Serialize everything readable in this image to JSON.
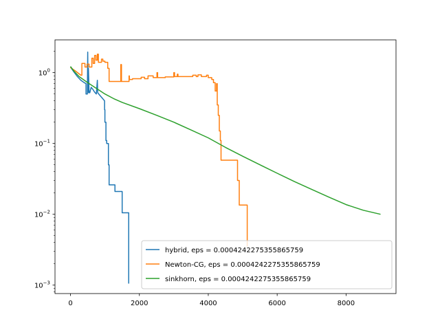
{
  "chart_data": {
    "type": "line",
    "title": "",
    "xlabel": "",
    "ylabel": "",
    "xlim": [
      -450,
      9450
    ],
    "ylim": [
      0.00076,
      2.9
    ],
    "yscale": "log",
    "grid": false,
    "legend_position": "lower-right",
    "x_ticks": [
      {
        "value": 0,
        "label": "0"
      },
      {
        "value": 2000,
        "label": "2000"
      },
      {
        "value": 4000,
        "label": "4000"
      },
      {
        "value": 6000,
        "label": "6000"
      },
      {
        "value": 8000,
        "label": "8000"
      }
    ],
    "y_ticks": [
      {
        "value": 0.001,
        "base": "10",
        "exp": "−3"
      },
      {
        "value": 0.01,
        "base": "10",
        "exp": "−2"
      },
      {
        "value": 0.1,
        "base": "10",
        "exp": "−1"
      },
      {
        "value": 1,
        "base": "10",
        "exp": "0"
      }
    ],
    "series": [
      {
        "name": "hybrid, eps = 0.0004242275355865759",
        "color": "#1f77b4",
        "step": true,
        "points": [
          [
            0,
            1.2
          ],
          [
            100,
            1.02
          ],
          [
            200,
            0.88
          ],
          [
            300,
            0.78
          ],
          [
            400,
            0.72
          ],
          [
            450,
            0.7
          ],
          [
            450,
            0.5
          ],
          [
            490,
            0.5
          ],
          [
            490,
            0.55
          ],
          [
            500,
            1.95
          ],
          [
            510,
            0.52
          ],
          [
            520,
            1.15
          ],
          [
            540,
            0.52
          ],
          [
            560,
            0.52
          ],
          [
            600,
            0.62
          ],
          [
            650,
            0.58
          ],
          [
            700,
            0.53
          ],
          [
            750,
            0.5
          ],
          [
            780,
            0.78
          ],
          [
            790,
            0.52
          ],
          [
            850,
            0.48
          ],
          [
            900,
            0.45
          ],
          [
            990,
            0.4
          ],
          [
            990,
            0.3
          ],
          [
            1000,
            0.3
          ],
          [
            1000,
            0.2
          ],
          [
            1030,
            0.2
          ],
          [
            1030,
            0.11
          ],
          [
            1050,
            0.11
          ],
          [
            1050,
            0.1
          ],
          [
            1100,
            0.1
          ],
          [
            1100,
            0.05
          ],
          [
            1120,
            0.05
          ],
          [
            1120,
            0.026
          ],
          [
            1290,
            0.026
          ],
          [
            1290,
            0.021
          ],
          [
            1500,
            0.021
          ],
          [
            1500,
            0.0105
          ],
          [
            1690,
            0.0105
          ],
          [
            1690,
            0.00105
          ]
        ]
      },
      {
        "name": "Newton-CG, eps = 0.0004242275355865759",
        "color": "#ff7f0e",
        "step": true,
        "points": [
          [
            0,
            1.18
          ],
          [
            150,
            1.05
          ],
          [
            300,
            0.92
          ],
          [
            330,
            0.92
          ],
          [
            330,
            1.35
          ],
          [
            420,
            1.35
          ],
          [
            420,
            1.2
          ],
          [
            480,
            1.2
          ],
          [
            480,
            1.32
          ],
          [
            540,
            1.32
          ],
          [
            540,
            1.2
          ],
          [
            620,
            1.2
          ],
          [
            620,
            1.6
          ],
          [
            660,
            1.6
          ],
          [
            660,
            1.35
          ],
          [
            700,
            1.35
          ],
          [
            700,
            1.75
          ],
          [
            740,
            1.75
          ],
          [
            740,
            1.5
          ],
          [
            780,
            1.5
          ],
          [
            780,
            1.82
          ],
          [
            810,
            1.82
          ],
          [
            810,
            1.4
          ],
          [
            900,
            1.4
          ],
          [
            900,
            1.55
          ],
          [
            940,
            1.55
          ],
          [
            940,
            1.45
          ],
          [
            1000,
            1.45
          ],
          [
            1000,
            1.4
          ],
          [
            1080,
            1.4
          ],
          [
            1080,
            1.15
          ],
          [
            1120,
            1.15
          ],
          [
            1120,
            0.75
          ],
          [
            1460,
            0.75
          ],
          [
            1460,
            1.3
          ],
          [
            1480,
            1.3
          ],
          [
            1480,
            0.75
          ],
          [
            1700,
            0.75
          ],
          [
            1700,
            0.9
          ],
          [
            1710,
            0.9
          ],
          [
            1710,
            0.8
          ],
          [
            1800,
            0.8
          ],
          [
            1800,
            0.82
          ],
          [
            2050,
            0.82
          ],
          [
            2050,
            0.86
          ],
          [
            2150,
            0.86
          ],
          [
            2150,
            0.82
          ],
          [
            2250,
            0.82
          ],
          [
            2250,
            0.9
          ],
          [
            2400,
            0.9
          ],
          [
            2400,
            0.85
          ],
          [
            2510,
            0.85
          ],
          [
            2510,
            1.0
          ],
          [
            2530,
            1.0
          ],
          [
            2530,
            0.85
          ],
          [
            2750,
            0.85
          ],
          [
            2750,
            0.87
          ],
          [
            3000,
            0.87
          ],
          [
            3000,
            1.0
          ],
          [
            3020,
            1.0
          ],
          [
            3020,
            0.88
          ],
          [
            3100,
            0.88
          ],
          [
            3100,
            0.95
          ],
          [
            3120,
            0.95
          ],
          [
            3120,
            0.88
          ],
          [
            3550,
            0.88
          ],
          [
            3550,
            0.92
          ],
          [
            3650,
            0.92
          ],
          [
            3650,
            0.88
          ],
          [
            3700,
            0.88
          ],
          [
            3700,
            0.93
          ],
          [
            3800,
            0.93
          ],
          [
            3800,
            0.88
          ],
          [
            3950,
            0.88
          ],
          [
            3950,
            0.92
          ],
          [
            4000,
            0.92
          ],
          [
            4000,
            0.85
          ],
          [
            4100,
            0.85
          ],
          [
            4100,
            0.8
          ],
          [
            4150,
            0.8
          ],
          [
            4150,
            0.72
          ],
          [
            4200,
            0.72
          ],
          [
            4200,
            0.55
          ],
          [
            4240,
            0.55
          ],
          [
            4240,
            0.7
          ],
          [
            4260,
            0.7
          ],
          [
            4260,
            0.35
          ],
          [
            4290,
            0.35
          ],
          [
            4290,
            0.25
          ],
          [
            4320,
            0.25
          ],
          [
            4320,
            0.15
          ],
          [
            4350,
            0.15
          ],
          [
            4350,
            0.11
          ],
          [
            4370,
            0.11
          ],
          [
            4370,
            0.058
          ],
          [
            4850,
            0.058
          ],
          [
            4850,
            0.03
          ],
          [
            4900,
            0.03
          ],
          [
            4900,
            0.0135
          ],
          [
            5130,
            0.0135
          ],
          [
            5130,
            0.0035
          ]
        ]
      },
      {
        "name": "sinkhorn, eps = 0.0004242275355865759",
        "color": "#2ca02c",
        "step": false,
        "points": [
          [
            0,
            1.22
          ],
          [
            100,
            1.05
          ],
          [
            250,
            0.88
          ],
          [
            500,
            0.72
          ],
          [
            750,
            0.6
          ],
          [
            1000,
            0.5
          ],
          [
            1250,
            0.43
          ],
          [
            1500,
            0.38
          ],
          [
            2000,
            0.31
          ],
          [
            2500,
            0.25
          ],
          [
            3000,
            0.2
          ],
          [
            3500,
            0.155
          ],
          [
            4000,
            0.12
          ],
          [
            4500,
            0.088
          ],
          [
            5000,
            0.066
          ],
          [
            5500,
            0.05
          ],
          [
            6000,
            0.038
          ],
          [
            6500,
            0.029
          ],
          [
            7000,
            0.0225
          ],
          [
            7500,
            0.0175
          ],
          [
            8000,
            0.0137
          ],
          [
            8500,
            0.0114
          ],
          [
            9000,
            0.01
          ]
        ]
      }
    ]
  }
}
